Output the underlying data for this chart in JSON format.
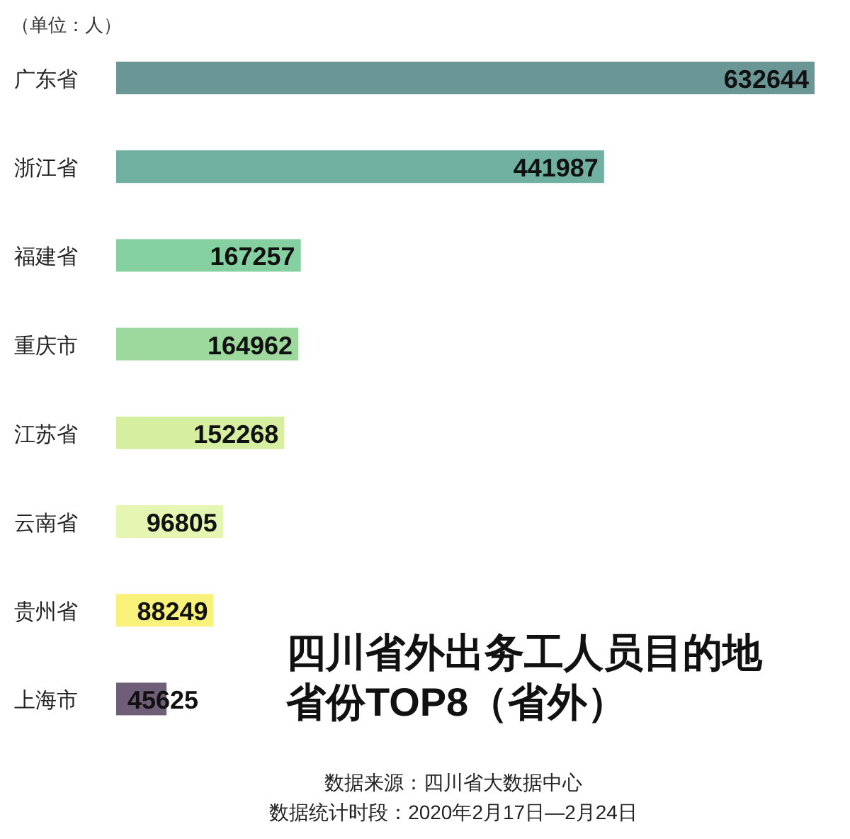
{
  "chart_data": {
    "type": "bar",
    "orientation": "horizontal",
    "data_labels": true,
    "title": "四川省外出务工人员目的地省份TOP8（省外）",
    "categories": [
      "广东省",
      "浙江省",
      "福建省",
      "重庆市",
      "江苏省",
      "云南省",
      "贵州省",
      "上海市"
    ],
    "values": [
      632644,
      441987,
      167257,
      164962,
      152268,
      96805,
      88249,
      45625
    ],
    "colors": [
      "#6a9795",
      "#6fb0a0",
      "#85d0a0",
      "#9dd89d",
      "#d6eea0",
      "#e5f5b2",
      "#f8f27a",
      "#6e5e78"
    ],
    "annotations": [
      "（单位：人）",
      "数据来源：四川省大数据中心",
      "数据统计时段：2020年2月17日—2月24日"
    ]
  }
}
